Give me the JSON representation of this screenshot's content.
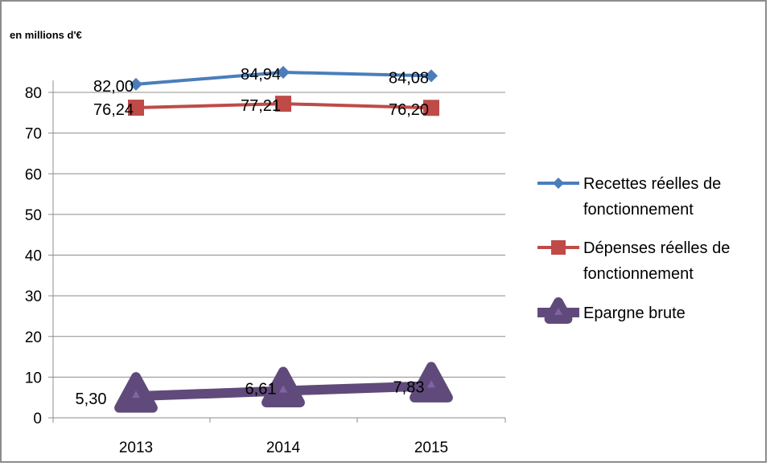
{
  "chart_data": {
    "type": "line",
    "unit_label": "en millions d'€",
    "categories": [
      "2013",
      "2014",
      "2015"
    ],
    "y_ticks": [
      "0",
      "10",
      "20",
      "30",
      "40",
      "50",
      "60",
      "70",
      "80"
    ],
    "ylim": [
      0,
      80
    ],
    "grid": true,
    "legend_position": "right",
    "series": [
      {
        "name": "Recettes réelles de fonctionnement",
        "legend_lines": [
          "Recettes réelles de",
          "fonctionnement"
        ],
        "values": [
          82.0,
          84.94,
          84.08
        ],
        "labels": [
          "82,00",
          "84,94",
          "84,08"
        ],
        "color": "#4a7ebb",
        "marker": "diamond"
      },
      {
        "name": "Dépenses réelles de fonctionnement",
        "legend_lines": [
          "Dépenses réelles de",
          "fonctionnement"
        ],
        "values": [
          76.24,
          77.21,
          76.2
        ],
        "labels": [
          "76,24",
          "77,21",
          "76,20"
        ],
        "color": "#be4b48",
        "marker": "square"
      },
      {
        "name": "Epargne brute",
        "legend_lines": [
          "Epargne brute"
        ],
        "values": [
          5.3,
          6.61,
          7.83
        ],
        "labels": [
          "5,30",
          "6,61",
          "7,83"
        ],
        "color": "#604a7b",
        "marker": "triangle"
      }
    ]
  }
}
